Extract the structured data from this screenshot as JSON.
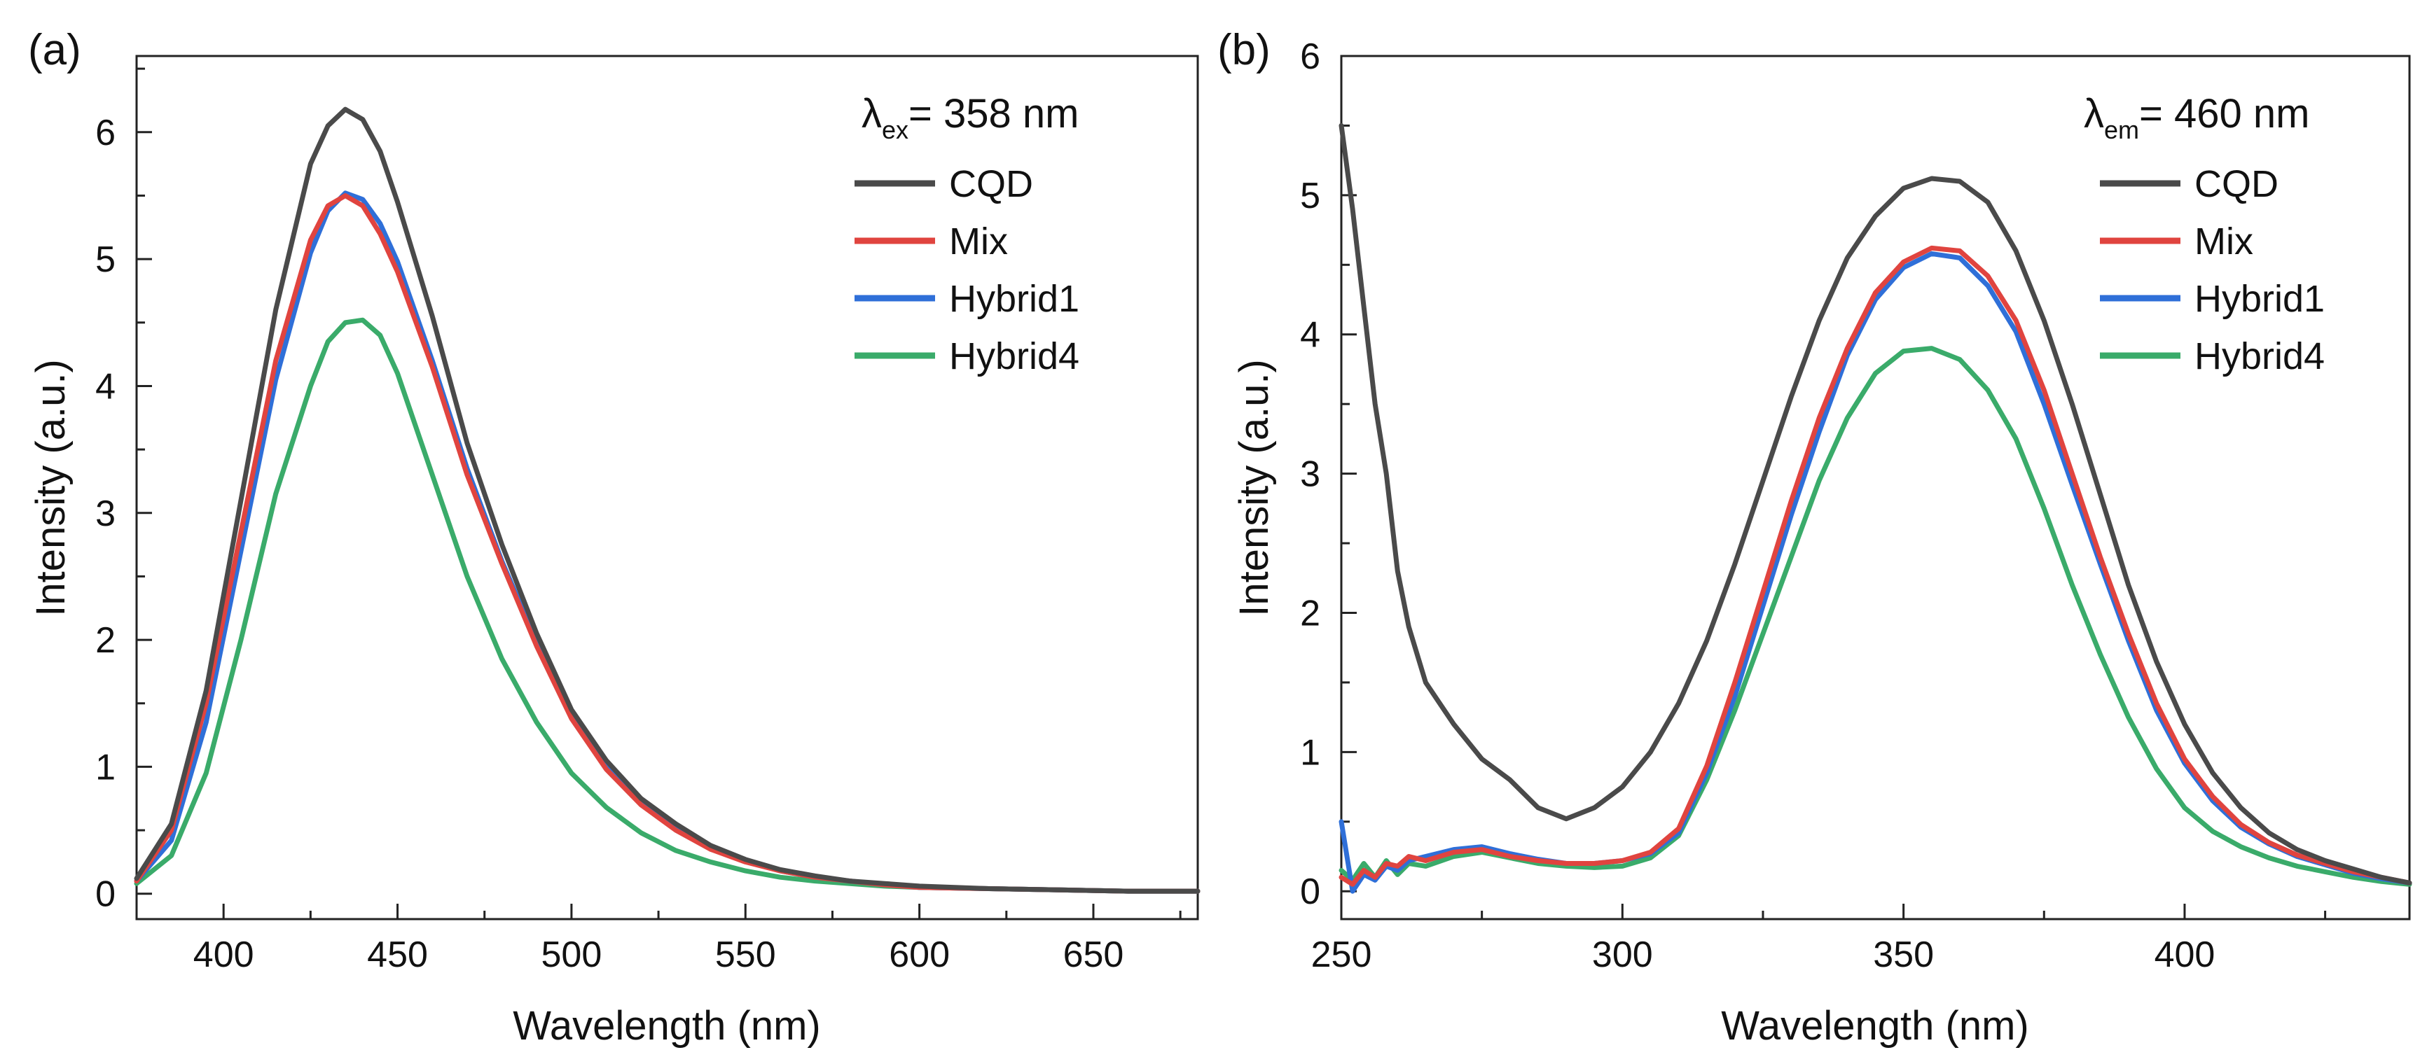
{
  "colors": {
    "CQD": "#4a4a4a",
    "Mix": "#e0443f",
    "Hybrid1": "#2f6fd8",
    "Hybrid4": "#3aab6a"
  },
  "chart_data": [
    {
      "type": "line",
      "panel_label": "(a)",
      "xlabel": "Wavelength (nm)",
      "ylabel": "Intensity (a.u.)",
      "xlim": [
        375,
        680
      ],
      "ylim": [
        -0.2,
        6.6
      ],
      "xticks": [
        400,
        450,
        500,
        550,
        600,
        650
      ],
      "yticks": [
        0,
        1,
        2,
        3,
        4,
        5,
        6
      ],
      "annotation": {
        "symbol": "λ",
        "sub": "ex",
        "text": "= 358 nm"
      },
      "legend_position": "top-right",
      "series": [
        {
          "name": "CQD",
          "color_key": "CQD",
          "x": [
            375,
            385,
            395,
            405,
            415,
            425,
            430,
            435,
            440,
            445,
            450,
            460,
            470,
            480,
            490,
            500,
            510,
            520,
            530,
            540,
            550,
            560,
            570,
            580,
            590,
            600,
            620,
            640,
            660,
            680
          ],
          "y": [
            0.12,
            0.55,
            1.6,
            3.1,
            4.6,
            5.75,
            6.05,
            6.18,
            6.1,
            5.85,
            5.45,
            4.55,
            3.55,
            2.75,
            2.05,
            1.45,
            1.05,
            0.75,
            0.55,
            0.38,
            0.27,
            0.19,
            0.14,
            0.1,
            0.08,
            0.06,
            0.04,
            0.03,
            0.02,
            0.02
          ]
        },
        {
          "name": "Mix",
          "color_key": "Mix",
          "x": [
            375,
            385,
            395,
            405,
            415,
            425,
            430,
            435,
            440,
            445,
            450,
            460,
            470,
            480,
            490,
            500,
            510,
            520,
            530,
            540,
            550,
            560,
            570,
            580,
            590,
            600,
            620,
            640,
            660,
            680
          ],
          "y": [
            0.1,
            0.5,
            1.5,
            2.85,
            4.2,
            5.15,
            5.42,
            5.5,
            5.42,
            5.2,
            4.9,
            4.15,
            3.3,
            2.6,
            1.95,
            1.38,
            0.98,
            0.7,
            0.5,
            0.35,
            0.25,
            0.18,
            0.13,
            0.1,
            0.07,
            0.05,
            0.04,
            0.03,
            0.02,
            0.02
          ]
        },
        {
          "name": "Hybrid1",
          "color_key": "Hybrid1",
          "x": [
            375,
            385,
            395,
            405,
            415,
            425,
            430,
            435,
            440,
            445,
            450,
            460,
            470,
            480,
            490,
            500,
            510,
            520,
            530,
            540,
            550,
            560,
            570,
            580,
            590,
            600,
            620,
            640,
            660,
            680
          ],
          "y": [
            0.1,
            0.42,
            1.35,
            2.7,
            4.05,
            5.05,
            5.38,
            5.52,
            5.47,
            5.28,
            4.98,
            4.2,
            3.35,
            2.62,
            1.98,
            1.42,
            1.02,
            0.72,
            0.52,
            0.36,
            0.26,
            0.18,
            0.13,
            0.1,
            0.07,
            0.05,
            0.04,
            0.03,
            0.02,
            0.02
          ]
        },
        {
          "name": "Hybrid4",
          "color_key": "Hybrid4",
          "x": [
            375,
            385,
            395,
            405,
            415,
            425,
            430,
            435,
            440,
            445,
            450,
            460,
            470,
            480,
            490,
            500,
            510,
            520,
            530,
            540,
            550,
            560,
            570,
            580,
            590,
            600,
            620,
            640,
            660,
            680
          ],
          "y": [
            0.08,
            0.3,
            0.95,
            2.0,
            3.15,
            4.0,
            4.35,
            4.5,
            4.52,
            4.4,
            4.1,
            3.3,
            2.5,
            1.85,
            1.35,
            0.95,
            0.68,
            0.48,
            0.34,
            0.25,
            0.18,
            0.13,
            0.1,
            0.08,
            0.06,
            0.05,
            0.04,
            0.03,
            0.02,
            0.02
          ]
        }
      ]
    },
    {
      "type": "line",
      "panel_label": "(b)",
      "xlabel": "Wavelength (nm)",
      "ylabel": "Intensity (a.u.)",
      "xlim": [
        250,
        440
      ],
      "ylim": [
        -0.2,
        6.0
      ],
      "xticks": [
        250,
        300,
        350,
        400
      ],
      "yticks": [
        0,
        1,
        2,
        3,
        4,
        5,
        6
      ],
      "annotation": {
        "symbol": "λ",
        "sub": "em",
        "text": "= 460 nm"
      },
      "legend_position": "top-right",
      "series": [
        {
          "name": "CQD",
          "color_key": "CQD",
          "x": [
            250,
            252,
            254,
            256,
            258,
            260,
            262,
            265,
            270,
            275,
            280,
            285,
            290,
            295,
            300,
            305,
            310,
            315,
            320,
            325,
            330,
            335,
            340,
            345,
            350,
            355,
            360,
            365,
            370,
            375,
            380,
            385,
            390,
            395,
            400,
            405,
            410,
            415,
            420,
            425,
            430,
            435,
            440
          ],
          "y": [
            5.5,
            4.9,
            4.2,
            3.5,
            3.0,
            2.3,
            1.9,
            1.5,
            1.2,
            0.95,
            0.8,
            0.6,
            0.52,
            0.6,
            0.75,
            1.0,
            1.35,
            1.8,
            2.35,
            2.95,
            3.55,
            4.1,
            4.55,
            4.85,
            5.05,
            5.12,
            5.1,
            4.95,
            4.6,
            4.1,
            3.5,
            2.85,
            2.2,
            1.65,
            1.2,
            0.85,
            0.6,
            0.42,
            0.3,
            0.22,
            0.16,
            0.1,
            0.06
          ]
        },
        {
          "name": "Mix",
          "color_key": "Mix",
          "x": [
            250,
            252,
            254,
            256,
            258,
            260,
            262,
            265,
            270,
            275,
            280,
            285,
            290,
            295,
            300,
            305,
            310,
            315,
            320,
            325,
            330,
            335,
            340,
            345,
            350,
            355,
            360,
            365,
            370,
            375,
            380,
            385,
            390,
            395,
            400,
            405,
            410,
            415,
            420,
            425,
            430,
            435,
            440
          ],
          "y": [
            0.1,
            0.05,
            0.15,
            0.1,
            0.2,
            0.18,
            0.25,
            0.22,
            0.28,
            0.3,
            0.25,
            0.22,
            0.2,
            0.2,
            0.22,
            0.28,
            0.45,
            0.9,
            1.5,
            2.15,
            2.8,
            3.4,
            3.9,
            4.3,
            4.52,
            4.62,
            4.6,
            4.42,
            4.1,
            3.6,
            3.0,
            2.4,
            1.85,
            1.35,
            0.95,
            0.68,
            0.48,
            0.35,
            0.26,
            0.2,
            0.14,
            0.1,
            0.06
          ]
        },
        {
          "name": "Hybrid1",
          "color_key": "Hybrid1",
          "x": [
            250,
            252,
            254,
            256,
            258,
            260,
            262,
            265,
            270,
            275,
            280,
            285,
            290,
            295,
            300,
            305,
            310,
            315,
            320,
            325,
            330,
            335,
            340,
            345,
            350,
            355,
            360,
            365,
            370,
            375,
            380,
            385,
            390,
            395,
            400,
            405,
            410,
            415,
            420,
            425,
            430,
            435,
            440
          ],
          "y": [
            0.5,
            0.0,
            0.12,
            0.08,
            0.18,
            0.15,
            0.22,
            0.25,
            0.3,
            0.32,
            0.27,
            0.23,
            0.2,
            0.2,
            0.22,
            0.27,
            0.42,
            0.85,
            1.4,
            2.05,
            2.7,
            3.3,
            3.85,
            4.25,
            4.48,
            4.58,
            4.55,
            4.35,
            4.02,
            3.5,
            2.92,
            2.35,
            1.8,
            1.3,
            0.92,
            0.65,
            0.46,
            0.34,
            0.25,
            0.19,
            0.13,
            0.09,
            0.06
          ]
        },
        {
          "name": "Hybrid4",
          "color_key": "Hybrid4",
          "x": [
            250,
            252,
            254,
            256,
            258,
            260,
            262,
            265,
            270,
            275,
            280,
            285,
            290,
            295,
            300,
            305,
            310,
            315,
            320,
            325,
            330,
            335,
            340,
            345,
            350,
            355,
            360,
            365,
            370,
            375,
            380,
            385,
            390,
            395,
            400,
            405,
            410,
            415,
            420,
            425,
            430,
            435,
            440
          ],
          "y": [
            0.15,
            0.08,
            0.2,
            0.1,
            0.22,
            0.12,
            0.2,
            0.18,
            0.25,
            0.28,
            0.24,
            0.2,
            0.18,
            0.17,
            0.18,
            0.24,
            0.4,
            0.8,
            1.3,
            1.85,
            2.4,
            2.95,
            3.4,
            3.72,
            3.88,
            3.9,
            3.82,
            3.6,
            3.25,
            2.75,
            2.2,
            1.7,
            1.25,
            0.88,
            0.6,
            0.43,
            0.32,
            0.24,
            0.18,
            0.14,
            0.1,
            0.07,
            0.05
          ]
        }
      ]
    }
  ]
}
